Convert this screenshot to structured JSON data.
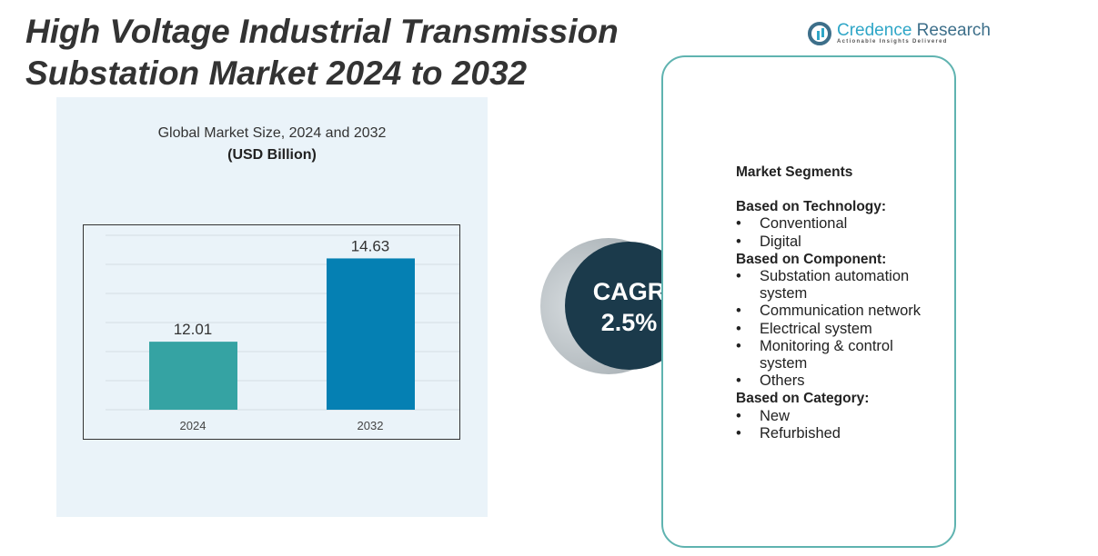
{
  "title": "High Voltage Industrial Transmission Substation Market 2024 to 2032",
  "logo": {
    "name_a": "Credence",
    "name_b": " Research",
    "tagline": "Actionable Insights Delivered"
  },
  "chart_data": {
    "type": "bar",
    "title": "Global Market Size, 2024 and 2032",
    "subtitle": "(USD Billion)",
    "categories": [
      "2024",
      "2032"
    ],
    "values": [
      12.01,
      14.63
    ],
    "value_labels": [
      "12.01",
      "14.63"
    ],
    "colors": [
      "#35a3a3",
      "#0580b3"
    ],
    "ylim": [
      9.87,
      15.3
    ],
    "grid": true,
    "xlabel": "",
    "ylabel": ""
  },
  "cagr": {
    "label": "CAGR",
    "value": "2.5%"
  },
  "segments": {
    "heading": "Market Segments",
    "groups": [
      {
        "title": "Based on Technology:",
        "items": [
          "Conventional",
          "Digital"
        ]
      },
      {
        "title": "Based on Component:",
        "items": [
          "Substation automation system",
          "Communication network",
          "Electrical system",
          "Monitoring & control system",
          "Others"
        ]
      },
      {
        "title": "Based on Category:",
        "items": [
          "New",
          "Refurbished"
        ]
      }
    ]
  }
}
